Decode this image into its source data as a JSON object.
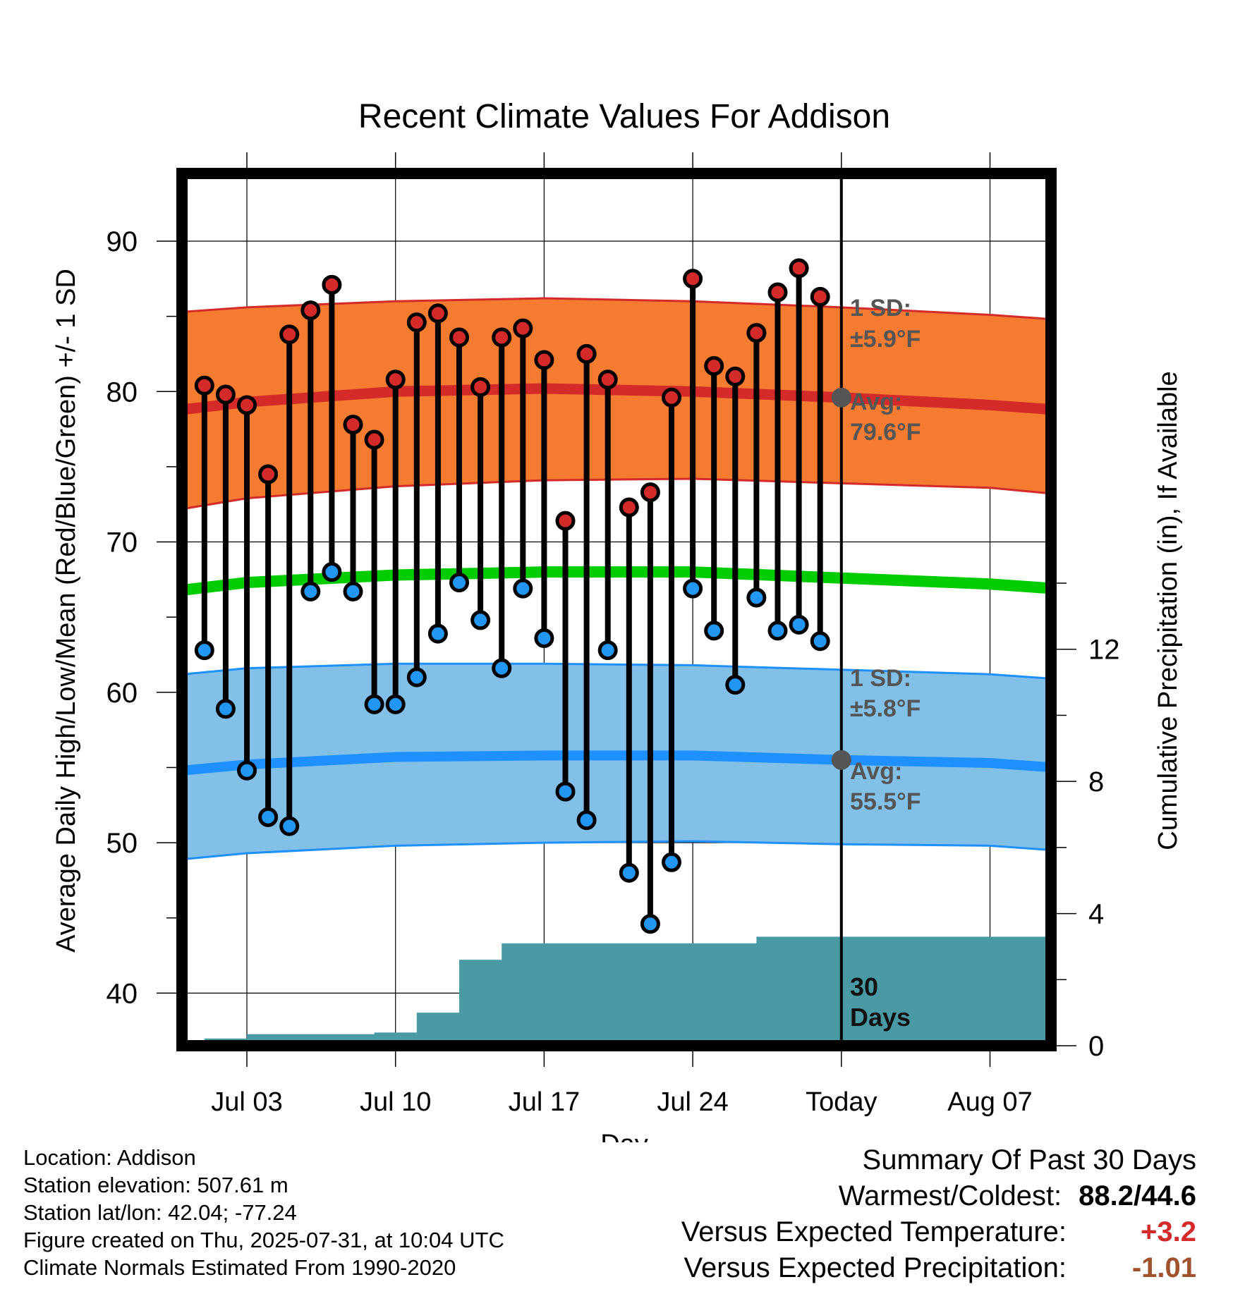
{
  "chart_data": {
    "type": "line",
    "title": "Recent Climate Values For Addison",
    "xlabel": "Day",
    "ylabel": "Average Daily High/Low/Mean (Red/Blue/Green) +/- 1 SD",
    "ylabel_right": "Cumulative Precipitation (in), If Available",
    "ylim": [
      36.5,
      94.5
    ],
    "ylim_right": [
      0,
      26.4
    ],
    "yticks": [
      "90",
      "80",
      "70",
      "60",
      "50",
      "40"
    ],
    "yticks_right": [
      "12",
      "8",
      "4",
      "0"
    ],
    "xticks": [
      "Jul 03",
      "Jul 10",
      "Jul 17",
      "Jul 24",
      "Today",
      "Aug 07"
    ],
    "x": [
      "Jul 01",
      "Jul 02",
      "Jul 03",
      "Jul 04",
      "Jul 05",
      "Jul 06",
      "Jul 07",
      "Jul 08",
      "Jul 09",
      "Jul 10",
      "Jul 11",
      "Jul 12",
      "Jul 13",
      "Jul 14",
      "Jul 15",
      "Jul 16",
      "Jul 17",
      "Jul 18",
      "Jul 19",
      "Jul 20",
      "Jul 21",
      "Jul 22",
      "Jul 23",
      "Jul 24",
      "Jul 25",
      "Jul 26",
      "Jul 27",
      "Jul 28",
      "Jul 29",
      "Jul 30"
    ],
    "series": [
      {
        "name": "High",
        "color": "#d42a2a",
        "values": [
          80.4,
          79.8,
          79.1,
          74.5,
          83.8,
          85.4,
          87.1,
          77.8,
          76.8,
          80.8,
          84.6,
          85.2,
          83.6,
          80.3,
          83.6,
          84.2,
          82.1,
          71.4,
          82.5,
          80.8,
          72.3,
          73.3,
          79.6,
          87.5,
          81.7,
          81.0,
          83.9,
          86.6,
          88.2,
          86.3
        ]
      },
      {
        "name": "Low",
        "color": "#2196f3",
        "values": [
          62.8,
          58.9,
          54.8,
          51.7,
          51.1,
          66.7,
          68.0,
          66.7,
          59.2,
          59.2,
          61.0,
          63.9,
          67.3,
          64.8,
          61.6,
          66.9,
          63.6,
          53.4,
          51.5,
          62.8,
          48.0,
          44.6,
          48.7,
          66.9,
          64.1,
          60.5,
          66.3,
          64.1,
          64.5,
          63.4
        ]
      }
    ],
    "normals": {
      "dates": [
        "Jun 30",
        "Jul 03",
        "Jul 10",
        "Jul 17",
        "Jul 24",
        "Jul 31",
        "Aug 07",
        "Aug 10"
      ],
      "high_avg": [
        78.8,
        79.3,
        80.0,
        80.2,
        80.0,
        79.6,
        79.1,
        78.8
      ],
      "high_sd_band": [
        [
          72.2,
          85.3
        ],
        [
          72.9,
          85.6
        ],
        [
          73.7,
          86.0
        ],
        [
          74.1,
          86.2
        ],
        [
          74.2,
          86.0
        ],
        [
          73.9,
          85.6
        ],
        [
          73.6,
          85.1
        ],
        [
          73.2,
          84.8
        ]
      ],
      "mean_avg": [
        66.8,
        67.3,
        67.8,
        68.0,
        68.0,
        67.6,
        67.2,
        66.9
      ],
      "low_avg": [
        54.8,
        55.2,
        55.7,
        55.8,
        55.8,
        55.5,
        55.3,
        55.0
      ],
      "low_sd_band": [
        [
          48.9,
          61.2
        ],
        [
          49.3,
          61.6
        ],
        [
          49.8,
          61.9
        ],
        [
          50.0,
          61.9
        ],
        [
          50.1,
          61.8
        ],
        [
          49.9,
          61.5
        ],
        [
          49.8,
          61.2
        ],
        [
          49.5,
          60.9
        ]
      ],
      "colors": {
        "high_band": "#f47b30",
        "high_line": "#d42a2a",
        "mean_line": "#00cc00",
        "low_band": "#82c0e8",
        "low_line": "#1e90ff"
      }
    },
    "precipitation": {
      "name": "Cumulative Precipitation",
      "color": "#4a9aa5",
      "x": [
        "Jun 30",
        "Jul 01",
        "Jul 02",
        "Jul 03",
        "Jul 04",
        "Jul 05",
        "Jul 06",
        "Jul 07",
        "Jul 08",
        "Jul 09",
        "Jul 10",
        "Jul 11",
        "Jul 12",
        "Jul 13",
        "Jul 14",
        "Jul 15",
        "Jul 16",
        "Jul 17",
        "Jul 18",
        "Jul 19",
        "Jul 20",
        "Jul 21",
        "Jul 22",
        "Jul 23",
        "Jul 24",
        "Jul 25",
        "Jul 26",
        "Jul 27",
        "Jul 28",
        "Jul 29",
        "Jul 30",
        "Jul 31",
        "Aug 10"
      ],
      "values": [
        0.0,
        0.22,
        0.22,
        0.35,
        0.35,
        0.35,
        0.35,
        0.35,
        0.35,
        0.4,
        0.4,
        1.0,
        1.0,
        2.6,
        2.6,
        3.1,
        3.1,
        3.1,
        3.1,
        3.1,
        3.1,
        3.1,
        3.1,
        3.1,
        3.1,
        3.1,
        3.1,
        3.3,
        3.3,
        3.3,
        3.3,
        3.3,
        3.3
      ]
    },
    "annotations": {
      "high": {
        "sd_label": "1 SD:",
        "sd_value": "±5.9°F",
        "avg_label": "Avg:",
        "avg_value": "79.6°F",
        "avg_today": 79.6
      },
      "low": {
        "sd_label": "1 SD:",
        "sd_value": "±5.8°F",
        "avg_label": "Avg:",
        "avg_value": "55.5°F",
        "avg_today": 55.5
      },
      "days_line1": "30",
      "days_line2": "Days"
    },
    "grid": true,
    "legend": "none"
  },
  "footer": {
    "location": "Location: Addison",
    "elevation": "Station elevation: 507.61 m",
    "latlon": "Station lat/lon: 42.04; -77.24",
    "created": "Figure created on Thu, 2025-07-31, at 10:04 UTC",
    "normals": "Climate Normals Estimated From 1990-2020"
  },
  "summary": {
    "title": "Summary Of Past 30 Days",
    "warm_cold_label": "Warmest/Coldest:",
    "warm_cold_value": "88.2/44.6",
    "temp_label": "Versus Expected Temperature:",
    "temp_value": "+3.2",
    "temp_color": "#d42a2a",
    "precip_label": "Versus Expected Precipitation:",
    "precip_value": "-1.01",
    "precip_color": "#a0522d"
  }
}
